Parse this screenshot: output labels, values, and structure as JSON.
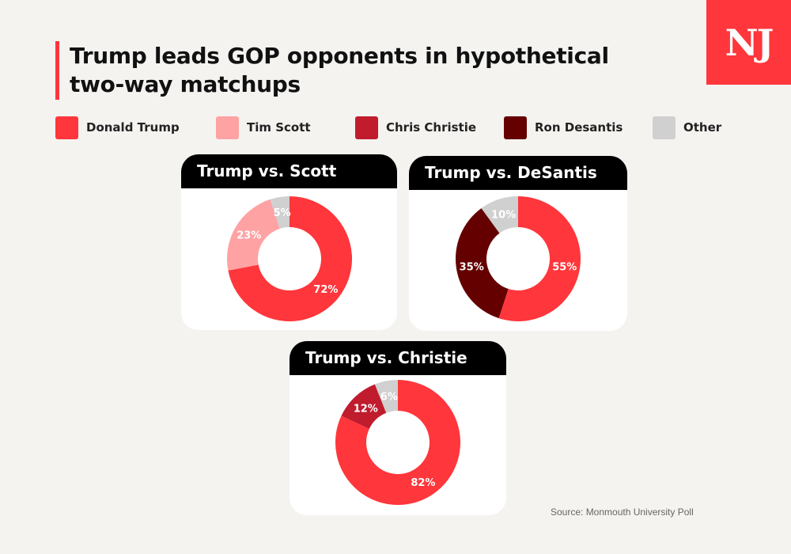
{
  "title": "Trump leads GOP opponents in hypothetical two-way matchups",
  "logo": "NJ",
  "source": "Source: Monmouth University Poll",
  "legend": [
    {
      "label": "Donald Trump",
      "color": "#ff363b"
    },
    {
      "label": "Tim Scott",
      "color": "#ffa2a4"
    },
    {
      "label": "Chris Christie",
      "color": "#c01c2e"
    },
    {
      "label": "Ron Desantis",
      "color": "#650000"
    },
    {
      "label": "Other",
      "color": "#d0d0d0"
    }
  ],
  "chart_data": [
    {
      "type": "pie",
      "title": "Trump vs. Scott",
      "slices": [
        {
          "name": "Donald Trump",
          "value": 72,
          "label": "72%",
          "color": "#ff363b"
        },
        {
          "name": "Tim Scott",
          "value": 23,
          "label": "23%",
          "color": "#ffa2a4"
        },
        {
          "name": "Other",
          "value": 5,
          "label": "5%",
          "color": "#d0d0d0"
        }
      ]
    },
    {
      "type": "pie",
      "title": "Trump vs. DeSantis",
      "slices": [
        {
          "name": "Donald Trump",
          "value": 55,
          "label": "55%",
          "color": "#ff363b"
        },
        {
          "name": "Ron Desantis",
          "value": 35,
          "label": "35%",
          "color": "#650000"
        },
        {
          "name": "Other",
          "value": 10,
          "label": "10%",
          "color": "#d0d0d0"
        }
      ]
    },
    {
      "type": "pie",
      "title": "Trump vs. Christie",
      "slices": [
        {
          "name": "Donald Trump",
          "value": 82,
          "label": "82%",
          "color": "#ff363b"
        },
        {
          "name": "Chris Christie",
          "value": 12,
          "label": "12%",
          "color": "#c01c2e"
        },
        {
          "name": "Other",
          "value": 6,
          "label": "6%",
          "color": "#d0d0d0"
        }
      ]
    }
  ]
}
